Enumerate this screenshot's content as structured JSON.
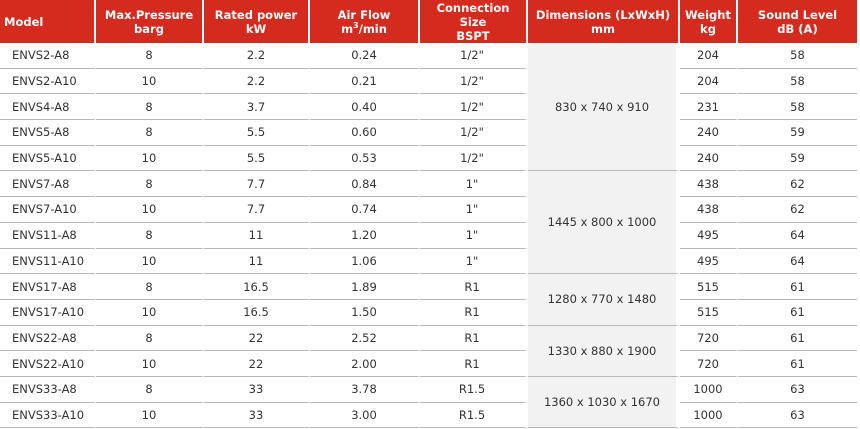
{
  "headers": {
    "model": "Model",
    "pressure": "Max.Pressure",
    "pressure_unit": "barg",
    "power": "Rated power",
    "power_unit": "kW",
    "airflow": "Air Flow",
    "airflow_unit_a": "m",
    "airflow_unit_sup": "3",
    "airflow_unit_b": "/min",
    "conn": "Connection Size",
    "conn_unit": "BSPT",
    "dims": "Dimensions (LxWxH)",
    "dims_unit": "mm",
    "weight": "Weight",
    "weight_unit": "kg",
    "sound": "Sound Level",
    "sound_unit": "dB (A)"
  },
  "rows": [
    {
      "model": "ENVS2-A8",
      "pressure": "8",
      "power": "2.2",
      "airflow": "0.24",
      "conn": "1/2\"",
      "weight": "204",
      "sound": "58"
    },
    {
      "model": "ENVS2-A10",
      "pressure": "10",
      "power": "2.2",
      "airflow": "0.21",
      "conn": "1/2\"",
      "weight": "204",
      "sound": "58"
    },
    {
      "model": "ENVS4-A8",
      "pressure": "8",
      "power": "3.7",
      "airflow": "0.40",
      "conn": "1/2\"",
      "weight": "231",
      "sound": "58"
    },
    {
      "model": "ENVS5-A8",
      "pressure": "8",
      "power": "5.5",
      "airflow": "0.60",
      "conn": "1/2\"",
      "weight": "240",
      "sound": "59"
    },
    {
      "model": "ENVS5-A10",
      "pressure": "10",
      "power": "5.5",
      "airflow": "0.53",
      "conn": "1/2\"",
      "weight": "240",
      "sound": "59"
    },
    {
      "model": "ENVS7-A8",
      "pressure": "8",
      "power": "7.7",
      "airflow": "0.84",
      "conn": "1\"",
      "weight": "438",
      "sound": "62"
    },
    {
      "model": "ENVS7-A10",
      "pressure": "10",
      "power": "7.7",
      "airflow": "0.74",
      "conn": "1\"",
      "weight": "438",
      "sound": "62"
    },
    {
      "model": "ENVS11-A8",
      "pressure": "8",
      "power": "11",
      "airflow": "1.20",
      "conn": "1\"",
      "weight": "495",
      "sound": "64"
    },
    {
      "model": "ENVS11-A10",
      "pressure": "10",
      "power": "11",
      "airflow": "1.06",
      "conn": "1\"",
      "weight": "495",
      "sound": "64"
    },
    {
      "model": "ENVS17-A8",
      "pressure": "8",
      "power": "16.5",
      "airflow": "1.89",
      "conn": "R1",
      "weight": "515",
      "sound": "61"
    },
    {
      "model": "ENVS17-A10",
      "pressure": "10",
      "power": "16.5",
      "airflow": "1.50",
      "conn": "R1",
      "weight": "515",
      "sound": "61"
    },
    {
      "model": "ENVS22-A8",
      "pressure": "8",
      "power": "22",
      "airflow": "2.52",
      "conn": "R1",
      "weight": "720",
      "sound": "61"
    },
    {
      "model": "ENVS22-A10",
      "pressure": "10",
      "power": "22",
      "airflow": "2.00",
      "conn": "R1",
      "weight": "720",
      "sound": "61"
    },
    {
      "model": "ENVS33-A8",
      "pressure": "8",
      "power": "33",
      "airflow": "3.78",
      "conn": "R1.5",
      "weight": "1000",
      "sound": "63"
    },
    {
      "model": "ENVS33-A10",
      "pressure": "10",
      "power": "33",
      "airflow": "3.00",
      "conn": "R1.5",
      "weight": "1000",
      "sound": "63"
    }
  ],
  "dimension_groups": [
    {
      "value": "830 x 740 x 910",
      "rows": 5
    },
    {
      "value": "1445 x 800 x 1000",
      "rows": 4
    },
    {
      "value": "1280 x 770 x 1480",
      "rows": 2
    },
    {
      "value": "1330 x 880 x 1900",
      "rows": 2
    },
    {
      "value": "1360 x 1030 x 1670",
      "rows": 2
    }
  ],
  "colors": {
    "header_bg": "#d52b1e",
    "header_text": "#ffffff",
    "dims_bg": "#f2f2f2",
    "rule": "#b8b8b8"
  }
}
